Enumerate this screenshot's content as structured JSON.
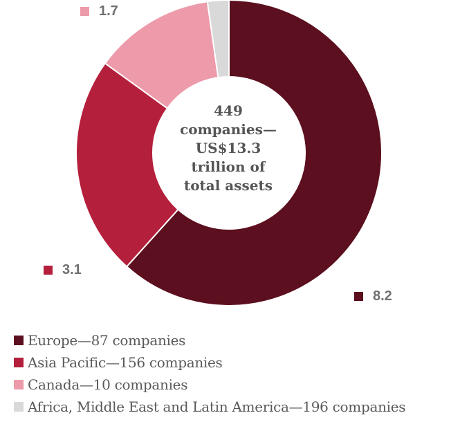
{
  "chart_data": {
    "type": "pie",
    "variant": "donut",
    "center_text": [
      "449",
      "companies—",
      "US$13.3",
      "trillion of",
      "total assets"
    ],
    "categories": [
      "Europe—87 companies",
      "Asia Pacific—156 companies",
      "Canada—10 companies",
      "Africa, Middle East and Latin America—196 companies"
    ],
    "values": [
      8.2,
      3.1,
      1.7,
      0.3
    ],
    "data_labels": [
      "8.2",
      "3.1",
      "1.7",
      ""
    ],
    "colors": [
      "#5c0f1e",
      "#b41f3b",
      "#ed9aaa",
      "#d9d9d9"
    ],
    "legend_position": "bottom-left"
  }
}
